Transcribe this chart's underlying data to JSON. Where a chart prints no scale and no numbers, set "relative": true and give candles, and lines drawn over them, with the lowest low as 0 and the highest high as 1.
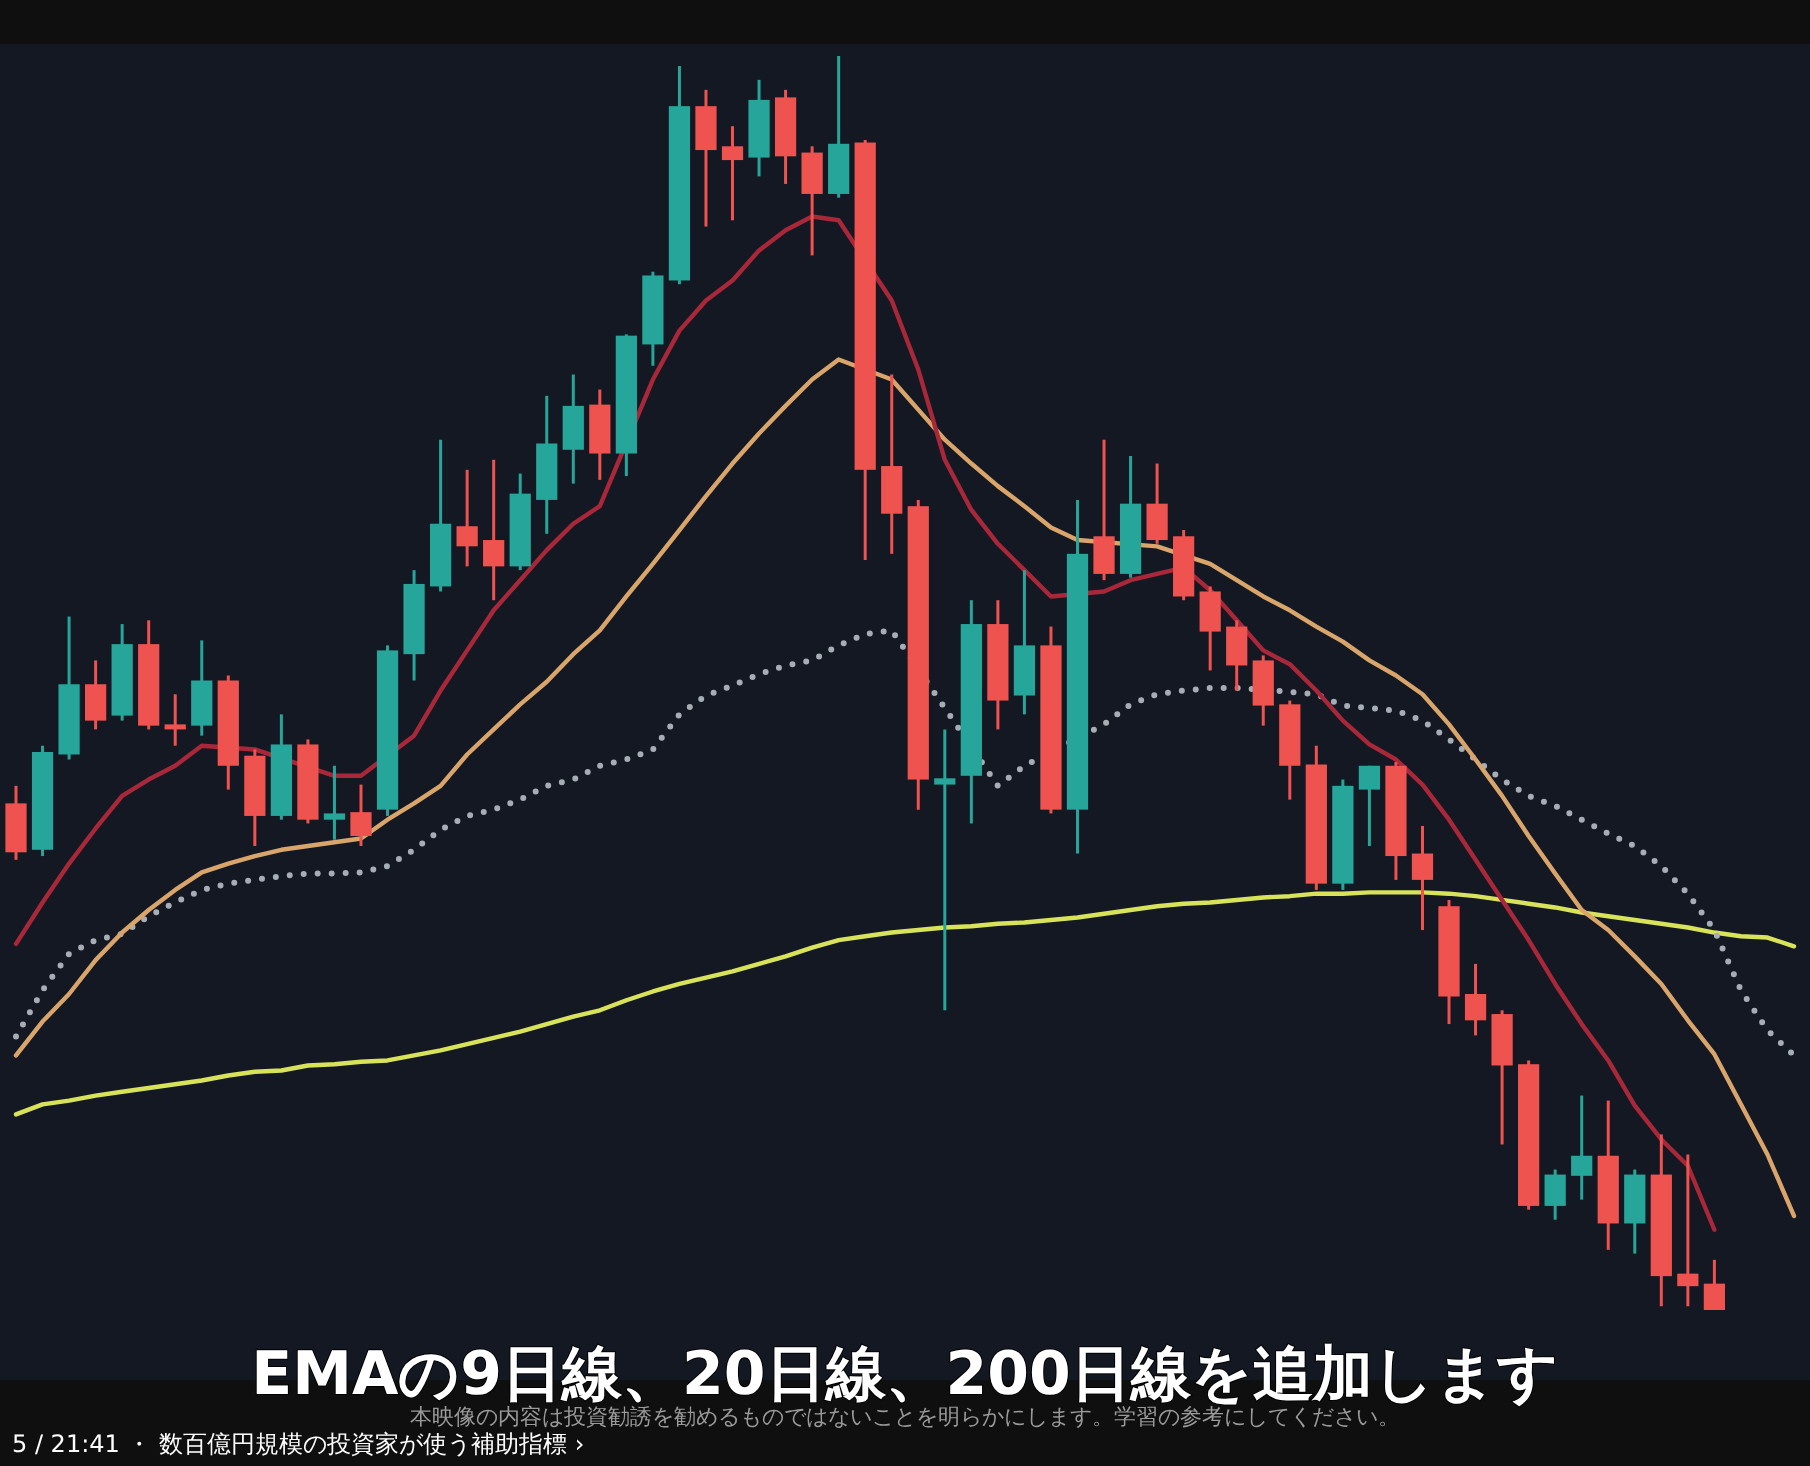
{
  "chart_data": {
    "type": "candlestick",
    "relative": true,
    "categories": [
      null,
      null,
      null,
      null,
      null,
      null,
      null,
      null,
      null,
      null,
      null,
      null,
      null,
      null,
      null,
      null,
      null,
      null,
      null,
      null,
      null,
      null,
      null,
      null,
      null,
      null,
      null,
      null,
      null,
      null,
      null,
      null,
      null,
      null,
      null,
      null,
      null,
      null,
      null,
      null,
      null,
      null,
      null,
      null,
      null,
      null,
      null,
      null,
      null,
      null,
      null,
      null,
      null,
      null,
      null,
      null,
      null,
      null,
      null,
      null,
      null,
      null,
      null,
      null,
      null,
      null,
      null,
      null
    ],
    "ohlc": [
      [
        0.404,
        0.418,
        0.359,
        0.365
      ],
      [
        0.367,
        0.45,
        0.362,
        0.445
      ],
      [
        0.443,
        0.553,
        0.439,
        0.499
      ],
      [
        0.499,
        0.518,
        0.463,
        0.47
      ],
      [
        0.474,
        0.547,
        0.47,
        0.531
      ],
      [
        0.531,
        0.55,
        0.463,
        0.466
      ],
      [
        0.467,
        0.491,
        0.45,
        0.463
      ],
      [
        0.466,
        0.534,
        0.458,
        0.502
      ],
      [
        0.502,
        0.506,
        0.415,
        0.434
      ],
      [
        0.442,
        0.447,
        0.37,
        0.394
      ],
      [
        0.394,
        0.475,
        0.391,
        0.451
      ],
      [
        0.451,
        0.455,
        0.388,
        0.391
      ],
      [
        0.391,
        0.434,
        0.375,
        0.396
      ],
      [
        0.397,
        0.419,
        0.37,
        0.378
      ],
      [
        0.399,
        0.53,
        0.394,
        0.526
      ],
      [
        0.523,
        0.59,
        0.502,
        0.579
      ],
      [
        0.577,
        0.694,
        0.573,
        0.627
      ],
      [
        0.625,
        0.67,
        0.593,
        0.609
      ],
      [
        0.614,
        0.678,
        0.566,
        0.593
      ],
      [
        0.593,
        0.667,
        0.59,
        0.651
      ],
      [
        0.646,
        0.729,
        0.619,
        0.691
      ],
      [
        0.686,
        0.746,
        0.659,
        0.721
      ],
      [
        0.722,
        0.734,
        0.662,
        0.683
      ],
      [
        0.683,
        0.778,
        0.665,
        0.777
      ],
      [
        0.77,
        0.828,
        0.753,
        0.825
      ],
      [
        0.821,
        0.992,
        0.818,
        0.96
      ],
      [
        0.96,
        0.973,
        0.864,
        0.925
      ],
      [
        0.928,
        0.944,
        0.869,
        0.917
      ],
      [
        0.919,
        0.981,
        0.904,
        0.965
      ],
      [
        0.967,
        0.973,
        0.898,
        0.92
      ],
      [
        0.923,
        0.928,
        0.841,
        0.89
      ],
      [
        0.89,
        1,
        0.887,
        0.93
      ],
      [
        0.931,
        0.933,
        0.598,
        0.67
      ],
      [
        0.673,
        0.746,
        0.603,
        0.635
      ],
      [
        0.641,
        0.646,
        0.399,
        0.423
      ],
      [
        0.419,
        0.463,
        0.239,
        0.424
      ],
      [
        0.426,
        0.566,
        0.388,
        0.547
      ],
      [
        0.547,
        0.566,
        0.463,
        0.486
      ],
      [
        0.49,
        0.59,
        0.475,
        0.53
      ],
      [
        0.53,
        0.545,
        0.396,
        0.399
      ],
      [
        0.399,
        0.646,
        0.364,
        0.603
      ],
      [
        0.617,
        0.694,
        0.582,
        0.587
      ],
      [
        0.587,
        0.681,
        0.584,
        0.643
      ],
      [
        0.643,
        0.675,
        0.611,
        0.614
      ],
      [
        0.617,
        0.622,
        0.566,
        0.569
      ],
      [
        0.573,
        0.577,
        0.51,
        0.541
      ],
      [
        0.545,
        0.55,
        0.494,
        0.514
      ],
      [
        0.518,
        0.522,
        0.466,
        0.482
      ],
      [
        0.483,
        0.486,
        0.407,
        0.434
      ],
      [
        0.435,
        0.45,
        0.335,
        0.34
      ],
      [
        0.34,
        0.423,
        0.335,
        0.418
      ],
      [
        0.415,
        0.434,
        0.37,
        0.434
      ],
      [
        0.434,
        0.437,
        0.343,
        0.362
      ],
      [
        0.364,
        0.386,
        0.303,
        0.343
      ],
      [
        0.322,
        0.327,
        0.228,
        0.25
      ],
      [
        0.252,
        0.276,
        0.219,
        0.231
      ],
      [
        0.236,
        0.239,
        0.132,
        0.195
      ],
      [
        0.196,
        0.199,
        0.08,
        0.083
      ],
      [
        0.083,
        0.112,
        0.072,
        0.108
      ],
      [
        0.107,
        0.171,
        0.088,
        0.123
      ],
      [
        0.123,
        0.167,
        0.048,
        0.069
      ],
      [
        0.069,
        0.112,
        0.045,
        0.108
      ],
      [
        0.108,
        0.14,
        0.003,
        0.027
      ],
      [
        0.029,
        0.124,
        0.003,
        0.019
      ],
      [
        0.021,
        0.04,
        0,
        0
      ],
      null,
      null,
      null
    ],
    "series": [
      {
        "type": "line",
        "color": "#d8e35a",
        "line_style": "solid",
        "values": [
          0.156,
          0.164,
          0.167,
          0.171,
          0.174,
          0.177,
          0.18,
          0.183,
          0.187,
          0.19,
          0.191,
          0.195,
          0.196,
          0.198,
          0.199,
          0.203,
          0.207,
          0.212,
          0.217,
          0.222,
          0.228,
          0.234,
          0.239,
          0.247,
          0.254,
          0.26,
          0.265,
          0.27,
          0.276,
          0.282,
          0.289,
          0.295,
          0.298,
          0.301,
          0.303,
          0.305,
          0.306,
          0.308,
          0.309,
          0.311,
          0.313,
          0.316,
          0.319,
          0.322,
          0.324,
          0.325,
          0.327,
          0.329,
          0.33,
          0.332,
          0.332,
          0.333,
          0.333,
          0.333,
          0.332,
          0.33,
          0.327,
          0.324,
          0.321,
          0.317,
          0.314,
          0.311,
          0.308,
          0.305,
          0.301,
          0.298,
          0.297,
          0.29
        ]
      },
      {
        "type": "line",
        "color": "#a7adb5",
        "line_style": "dotted",
        "values": [
          0.218,
          0.255,
          0.284,
          0.295,
          0.3,
          0.314,
          0.325,
          0.335,
          0.34,
          0.343,
          0.346,
          0.348,
          0.348,
          0.349,
          0.354,
          0.367,
          0.383,
          0.394,
          0.399,
          0.407,
          0.418,
          0.423,
          0.434,
          0.439,
          0.447,
          0.475,
          0.49,
          0.498,
          0.507,
          0.514,
          0.518,
          0.53,
          0.539,
          0.542,
          null,
          null,
          null,
          0.418,
          0.434,
          null,
          null,
          0.467,
          0.483,
          0.491,
          0.494,
          0.496,
          0.496,
          null,
          0.493,
          0.491,
          0.482,
          0.48,
          0.478,
          0.47,
          0.455,
          0.439,
          0.423,
          0.41,
          0.402,
          0.391,
          0.38,
          0.37,
          0.354,
          0.332,
          0.303,
          0.255,
          0.223,
          0.203
        ]
      },
      {
        "type": "line",
        "color": "#d9a56a",
        "line_style": "solid",
        "values": [
          0.203,
          0.23,
          0.252,
          0.279,
          0.301,
          0.319,
          0.335,
          0.349,
          0.356,
          0.362,
          0.367,
          0.37,
          0.373,
          0.376,
          0.391,
          0.404,
          0.418,
          0.443,
          0.463,
          0.483,
          0.501,
          0.523,
          0.542,
          0.569,
          0.595,
          0.622,
          0.649,
          0.675,
          0.699,
          0.721,
          0.742,
          0.758,
          null,
          0.742,
          0.718,
          0.694,
          0.675,
          0.657,
          0.641,
          0.624,
          0.614,
          null,
          null,
          0.609,
          null,
          0.595,
          0.582,
          0.569,
          0.558,
          0.545,
          0.533,
          0.518,
          0.506,
          0.491,
          0.467,
          0.439,
          0.41,
          0.378,
          0.348,
          0.319,
          0.303,
          0.282,
          0.26,
          0.231,
          0.204,
          0.164,
          0.124,
          0.075
        ]
      },
      {
        "type": "line",
        "color": "#a8283a",
        "line_style": "solid",
        "values": [
          0.292,
          0.325,
          0.356,
          0.384,
          0.41,
          0.423,
          0.434,
          0.45,
          null,
          0.447,
          null,
          null,
          0.426,
          0.426,
          null,
          0.458,
          0.494,
          0.526,
          0.558,
          0.582,
          0.606,
          0.627,
          0.641,
          null,
          0.742,
          0.781,
          0.805,
          0.821,
          0.845,
          0.861,
          0.872,
          0.869,
          null,
          0.805,
          0.75,
          0.678,
          0.638,
          0.611,
          0.59,
          0.569,
          null,
          0.573,
          0.582,
          0.587,
          0.592,
          0.574,
          0.55,
          0.526,
          0.515,
          0.494,
          0.47,
          0.451,
          0.439,
          0.419,
          0.391,
          0.359,
          0.327,
          0.295,
          0.26,
          0.228,
          0.199,
          0.163,
          0.136,
          0.115,
          0.064,
          null,
          null,
          null
        ]
      }
    ],
    "annotations": [
      "EMAの9日線、20日線、200日線を追加します",
      "5 / 21:41 ・ 数百億円規模の投資家が使う補助指標 ›",
      "本映像の内容は投資勧誘を勧めるものではないことを明らかにします。学習の参考にしてください。"
    ]
  }
}
